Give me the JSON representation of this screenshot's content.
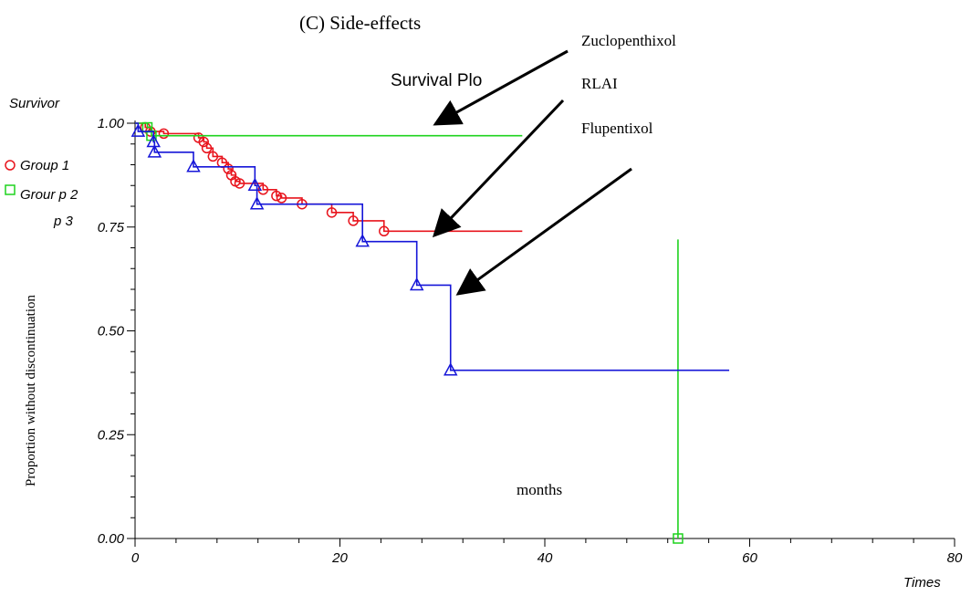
{
  "chart_data": {
    "type": "line",
    "panel_title": "(C) Side-effects",
    "plot_title": "Survival Plo",
    "ylabel_top": "Survivor",
    "ylabel": "Proportion without discontinuation",
    "xlabel": "Times",
    "inner_xlabel": "months",
    "xlim": [
      0,
      80
    ],
    "ylim": [
      0,
      1
    ],
    "x_ticks": [
      "0",
      "20",
      "40",
      "60",
      "80"
    ],
    "y_ticks": [
      "0.00",
      "0.25",
      "0.50",
      "0.75",
      "1.00"
    ],
    "legend": [
      "Group 1",
      "Grour p 2",
      "p 3"
    ],
    "annotations": [
      "Zuclopenthixol",
      "RLAI",
      "Flupentixol"
    ],
    "series": [
      {
        "color": "#e8141d",
        "marker": "circle",
        "steps": [
          [
            0,
            1.0
          ],
          [
            1.0,
            0.99
          ],
          [
            1.5,
            0.98
          ],
          [
            2.8,
            0.975
          ],
          [
            6.2,
            0.965
          ],
          [
            6.7,
            0.955
          ],
          [
            7.0,
            0.94
          ],
          [
            7.6,
            0.92
          ],
          [
            8.5,
            0.905
          ],
          [
            9.1,
            0.89
          ],
          [
            9.4,
            0.875
          ],
          [
            9.8,
            0.86
          ],
          [
            10.2,
            0.855
          ],
          [
            12.5,
            0.84
          ],
          [
            13.8,
            0.825
          ],
          [
            14.3,
            0.82
          ],
          [
            16.3,
            0.805
          ],
          [
            19.2,
            0.785
          ],
          [
            21.3,
            0.765
          ],
          [
            24.3,
            0.74
          ],
          [
            37.8,
            0.74
          ]
        ],
        "markers": [
          [
            1.0,
            0.99
          ],
          [
            1.5,
            0.98
          ],
          [
            2.8,
            0.975
          ],
          [
            6.2,
            0.965
          ],
          [
            6.7,
            0.955
          ],
          [
            7.0,
            0.94
          ],
          [
            7.6,
            0.92
          ],
          [
            8.5,
            0.905
          ],
          [
            9.1,
            0.89
          ],
          [
            9.4,
            0.875
          ],
          [
            9.8,
            0.86
          ],
          [
            10.2,
            0.855
          ],
          [
            12.5,
            0.84
          ],
          [
            13.8,
            0.825
          ],
          [
            14.3,
            0.82
          ],
          [
            16.3,
            0.805
          ],
          [
            19.2,
            0.785
          ],
          [
            21.3,
            0.765
          ],
          [
            24.3,
            0.74
          ]
        ]
      },
      {
        "color": "#1ed31e",
        "marker": "square",
        "steps": [
          [
            0,
            1.0
          ],
          [
            1.2,
            0.99
          ],
          [
            1.6,
            0.97
          ],
          [
            37.8,
            0.97
          ]
        ],
        "markers": [
          [
            1.2,
            0.99
          ],
          [
            1.6,
            0.97
          ],
          [
            53.0,
            0.0
          ]
        ],
        "vertical_line": {
          "x": 53.0,
          "y_from": 0.0,
          "y_to": 0.72
        }
      },
      {
        "color": "#1616d8",
        "marker": "triangle",
        "steps": [
          [
            0,
            1.0
          ],
          [
            0.3,
            0.98
          ],
          [
            1.8,
            0.955
          ],
          [
            1.9,
            0.93
          ],
          [
            5.7,
            0.895
          ],
          [
            11.7,
            0.85
          ],
          [
            11.9,
            0.805
          ],
          [
            22.2,
            0.715
          ],
          [
            27.5,
            0.61
          ],
          [
            30.8,
            0.405
          ],
          [
            58.0,
            0.405
          ]
        ],
        "markers": [
          [
            0.3,
            0.98
          ],
          [
            1.8,
            0.955
          ],
          [
            1.9,
            0.93
          ],
          [
            5.7,
            0.895
          ],
          [
            11.7,
            0.85
          ],
          [
            11.9,
            0.805
          ],
          [
            22.2,
            0.715
          ],
          [
            27.5,
            0.61
          ],
          [
            30.8,
            0.405
          ]
        ]
      }
    ]
  }
}
